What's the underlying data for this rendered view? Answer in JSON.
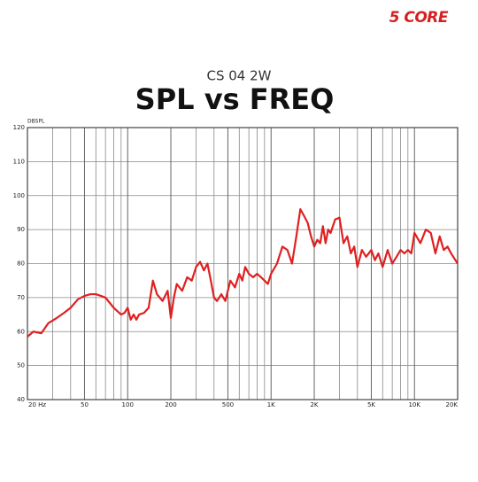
{
  "logo": "5 CORE",
  "chart_data": {
    "type": "line",
    "subtitle": "CS 04 2W",
    "title": "SPL vs FREQ",
    "ylabel": "DBSPL",
    "xscale": "log",
    "xlim": [
      20,
      20000
    ],
    "ylim": [
      40,
      120
    ],
    "yticks": [
      40,
      50,
      60,
      70,
      80,
      90,
      100,
      110,
      120
    ],
    "xticks": [
      {
        "value": 20,
        "label": "20 Hz"
      },
      50,
      100,
      200,
      500,
      {
        "value": 1000,
        "label": "1K"
      },
      {
        "value": 2000,
        "label": "2K"
      },
      {
        "value": 5000,
        "label": "5K"
      },
      {
        "value": 10000,
        "label": "10K"
      },
      {
        "value": 20000,
        "label": "20K"
      }
    ],
    "xminor": [
      30,
      40,
      60,
      70,
      80,
      90,
      300,
      400,
      600,
      700,
      800,
      900,
      3000,
      4000,
      6000,
      7000,
      8000,
      9000
    ],
    "grid": true,
    "color": "#e02020",
    "x": [
      20,
      22,
      25,
      28,
      32,
      36,
      40,
      45,
      50,
      55,
      60,
      65,
      70,
      80,
      90,
      95,
      100,
      105,
      110,
      115,
      120,
      130,
      140,
      150,
      160,
      175,
      190,
      200,
      210,
      220,
      240,
      260,
      280,
      300,
      320,
      340,
      360,
      380,
      400,
      420,
      450,
      480,
      520,
      560,
      600,
      630,
      660,
      700,
      750,
      800,
      850,
      900,
      950,
      1000,
      1100,
      1200,
      1300,
      1400,
      1500,
      1600,
      1700,
      1800,
      1900,
      2000,
      2100,
      2200,
      2300,
      2400,
      2500,
      2600,
      2800,
      3000,
      3200,
      3400,
      3600,
      3800,
      4000,
      4300,
      4600,
      5000,
      5300,
      5600,
      6000,
      6500,
      7000,
      7500,
      8000,
      8500,
      9000,
      9500,
      10000,
      11000,
      12000,
      13000,
      14000,
      15000,
      16000,
      17000,
      18000,
      20000
    ],
    "values": [
      58.5,
      60,
      59.5,
      62.5,
      64,
      65.5,
      67,
      69.5,
      70.5,
      71,
      71,
      70.5,
      70,
      67,
      65,
      65.5,
      67,
      63.5,
      65,
      63.5,
      65,
      65.5,
      67,
      75,
      71,
      69,
      72,
      64,
      70,
      74,
      72,
      76,
      75,
      79,
      80.5,
      78,
      80,
      75,
      70,
      69,
      71,
      69,
      75,
      73,
      77,
      75,
      79,
      77,
      76,
      77,
      76,
      75,
      74,
      77,
      80,
      85,
      84,
      80,
      88,
      96,
      94,
      92,
      88,
      85,
      87,
      86,
      91,
      86,
      90,
      89,
      93,
      93.5,
      86,
      88,
      83,
      85,
      79,
      84,
      82,
      84,
      81,
      83,
      79,
      84,
      80,
      82,
      84,
      83,
      84,
      83,
      89,
      86,
      90,
      89,
      83,
      88,
      84,
      85,
      83,
      80
    ]
  }
}
